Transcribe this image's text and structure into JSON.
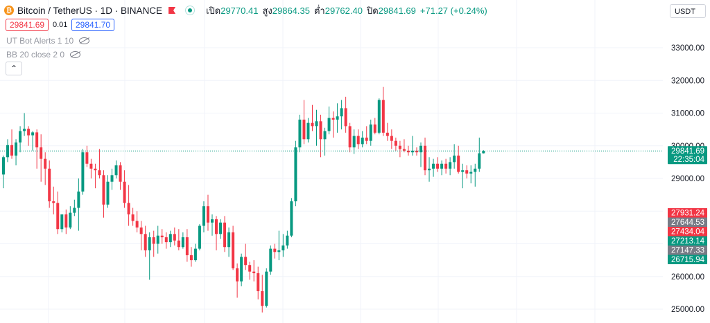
{
  "symbol": {
    "icon": "bitcoin-icon",
    "title": "Bitcoin / TetherUS · 1D · BINANCE",
    "flag_icon": "flag-icon",
    "status_icon": "market-status-dot"
  },
  "ohlc": {
    "open_label": "เปิด",
    "open": "29770.41",
    "high_label": "สูง",
    "high": "29864.35",
    "low_label": "ต่ำ",
    "low": "29762.40",
    "close_label": "ปิด",
    "close": "29841.69",
    "change": "+71.27 (+0.24%)"
  },
  "trade": {
    "sell": "29841.69",
    "spread": "0.01",
    "buy": "29841.70"
  },
  "indicators": [
    {
      "label": "UT Bot Alerts 1 10",
      "icon": "eye-hidden-icon"
    },
    {
      "label": "BB 20 close 2 0",
      "icon": "eye-hidden-icon"
    }
  ],
  "collapse_icon": "chevron-up-icon",
  "currency_selector": "USDT",
  "colors": {
    "up": "#089981",
    "down": "#f23645",
    "grey": "#787b86",
    "accent": "#2962ff"
  },
  "chart_data": {
    "type": "candlestick",
    "y_ticks": [
      "33000.00",
      "32000.00",
      "31000.00",
      "30000.00",
      "29000.00",
      "28000.00",
      "27000.00",
      "26000.00",
      "25000.00"
    ],
    "ylim": [
      24800,
      33700
    ],
    "grid": true,
    "last_price": {
      "value": "29841.69",
      "countdown": "22:35:04"
    },
    "axis_labels": [
      {
        "text": "27931.24",
        "color": "#f23645"
      },
      {
        "text": "27644.53",
        "color": "#787b86"
      },
      {
        "text": "27434.04",
        "color": "#f23645"
      },
      {
        "text": "27213.14",
        "color": "#089981"
      },
      {
        "text": "27147.33",
        "color": "#787b86"
      },
      {
        "text": "26715.94",
        "color": "#089981"
      }
    ],
    "candles": [
      [
        29120,
        29700,
        28700,
        29650
      ],
      [
        29650,
        30200,
        29500,
        30020
      ],
      [
        30020,
        30500,
        29600,
        29700
      ],
      [
        29700,
        30200,
        29400,
        30100
      ],
      [
        30100,
        30600,
        29800,
        30450
      ],
      [
        30450,
        31000,
        30300,
        30520
      ],
      [
        30520,
        30600,
        30000,
        30320
      ],
      [
        30320,
        30450,
        29850,
        30410
      ],
      [
        30410,
        30500,
        29300,
        29950
      ],
      [
        29950,
        30350,
        28900,
        29600
      ],
      [
        29600,
        29800,
        28800,
        29300
      ],
      [
        29300,
        29550,
        28100,
        28300
      ],
      [
        28300,
        28750,
        27900,
        28250
      ],
      [
        28250,
        28600,
        27300,
        27450
      ],
      [
        27450,
        27850,
        27350,
        27900
      ],
      [
        27900,
        28050,
        27300,
        27500
      ],
      [
        27500,
        28150,
        27450,
        27950
      ],
      [
        27950,
        28350,
        27850,
        28100
      ],
      [
        28100,
        29000,
        27400,
        28600
      ],
      [
        28600,
        29900,
        28500,
        29800
      ],
      [
        29800,
        30000,
        29350,
        29450
      ],
      [
        29450,
        29600,
        29000,
        29300
      ],
      [
        29300,
        29450,
        28700,
        29250
      ],
      [
        29250,
        29900,
        29000,
        29100
      ],
      [
        29100,
        29250,
        27800,
        28200
      ],
      [
        28200,
        29100,
        28100,
        28900
      ],
      [
        28900,
        29300,
        28650,
        29100
      ],
      [
        29100,
        29550,
        29000,
        29400
      ],
      [
        29400,
        29500,
        28650,
        28900
      ],
      [
        28900,
        29250,
        28100,
        28250
      ],
      [
        28250,
        28800,
        27550,
        27900
      ],
      [
        27900,
        28100,
        27550,
        27700
      ],
      [
        27700,
        28000,
        27350,
        27500
      ],
      [
        27500,
        27700,
        26800,
        27300
      ],
      [
        27300,
        27550,
        26600,
        26800
      ],
      [
        26800,
        27350,
        25900,
        27200
      ],
      [
        27200,
        27400,
        26600,
        27000
      ],
      [
        27000,
        27550,
        26700,
        27250
      ],
      [
        27250,
        27450,
        27000,
        27200
      ],
      [
        27200,
        27350,
        26850,
        27050
      ],
      [
        27050,
        27400,
        26900,
        27300
      ],
      [
        27300,
        27500,
        26950,
        27100
      ],
      [
        27100,
        27450,
        26800,
        26900
      ],
      [
        26900,
        27350,
        26850,
        27200
      ],
      [
        27200,
        27450,
        26450,
        26650
      ],
      [
        26650,
        26900,
        26300,
        26500
      ],
      [
        26500,
        27000,
        26450,
        26850
      ],
      [
        26850,
        27600,
        26800,
        27550
      ],
      [
        27550,
        28300,
        27350,
        28150
      ],
      [
        28150,
        28500,
        27400,
        27650
      ],
      [
        27650,
        27900,
        27250,
        27750
      ],
      [
        27750,
        27850,
        26800,
        27300
      ],
      [
        27300,
        27750,
        27150,
        27650
      ],
      [
        27650,
        27850,
        26750,
        26900
      ],
      [
        26900,
        27500,
        26600,
        27350
      ],
      [
        27350,
        27550,
        26200,
        26250
      ],
      [
        26250,
        26400,
        25350,
        25850
      ],
      [
        25850,
        26700,
        25700,
        26600
      ],
      [
        26600,
        27000,
        26200,
        26350
      ],
      [
        26350,
        26450,
        25900,
        26150
      ],
      [
        26150,
        26500,
        25850,
        26100
      ],
      [
        26100,
        26300,
        25300,
        25550
      ],
      [
        25550,
        26050,
        24900,
        25100
      ],
      [
        25100,
        26250,
        25050,
        26150
      ],
      [
        26150,
        26950,
        26050,
        26850
      ],
      [
        26850,
        27000,
        26550,
        26750
      ],
      [
        26750,
        27400,
        26500,
        26800
      ],
      [
        26800,
        27300,
        26600,
        26950
      ],
      [
        26950,
        27400,
        26850,
        27250
      ],
      [
        27250,
        28400,
        27200,
        28300
      ],
      [
        28300,
        30150,
        28150,
        29950
      ],
      [
        29950,
        30950,
        29800,
        30800
      ],
      [
        30800,
        31400,
        30050,
        30200
      ],
      [
        30200,
        30850,
        30100,
        30700
      ],
      [
        30700,
        31250,
        30450,
        30600
      ],
      [
        30600,
        31100,
        30000,
        30750
      ],
      [
        30750,
        30950,
        29650,
        30200
      ],
      [
        30200,
        30550,
        29700,
        30450
      ],
      [
        30450,
        31200,
        30350,
        30850
      ],
      [
        30850,
        31050,
        30250,
        30800
      ],
      [
        30800,
        31300,
        30400,
        30900
      ],
      [
        30900,
        31400,
        30500,
        31150
      ],
      [
        31150,
        31500,
        30400,
        30600
      ],
      [
        30600,
        30700,
        29800,
        29950
      ],
      [
        29950,
        30500,
        29750,
        30300
      ],
      [
        30300,
        30500,
        29900,
        30050
      ],
      [
        30050,
        30450,
        29950,
        30250
      ],
      [
        30250,
        30600,
        30050,
        30150
      ],
      [
        30150,
        30800,
        30000,
        30650
      ],
      [
        30650,
        30850,
        30350,
        30400
      ],
      [
        30400,
        31450,
        30350,
        31400
      ],
      [
        31400,
        31800,
        30300,
        30400
      ],
      [
        30400,
        30700,
        30150,
        30300
      ],
      [
        30300,
        30500,
        29900,
        30150
      ],
      [
        30150,
        30250,
        29850,
        30000
      ],
      [
        30000,
        30150,
        29650,
        29900
      ],
      [
        29900,
        30200,
        29800,
        29850
      ],
      [
        29850,
        30000,
        29700,
        29800
      ],
      [
        29800,
        30300,
        29700,
        29850
      ],
      [
        29850,
        29950,
        29700,
        29800
      ],
      [
        29800,
        30100,
        29350,
        30000
      ],
      [
        30000,
        30250,
        29100,
        29250
      ],
      [
        29250,
        29650,
        28900,
        29300
      ],
      [
        29300,
        29600,
        29050,
        29450
      ],
      [
        29450,
        29650,
        29200,
        29300
      ],
      [
        29300,
        29550,
        29100,
        29450
      ],
      [
        29450,
        29600,
        29150,
        29300
      ],
      [
        29300,
        29650,
        29100,
        29500
      ],
      [
        29500,
        30050,
        29300,
        29700
      ],
      [
        29700,
        30000,
        29150,
        29200
      ],
      [
        29200,
        29450,
        28700,
        29250
      ],
      [
        29250,
        29400,
        29000,
        29150
      ],
      [
        29150,
        29400,
        28850,
        29200
      ],
      [
        29200,
        29450,
        28750,
        29300
      ],
      [
        29300,
        30250,
        29200,
        29770
      ],
      [
        29770.41,
        29864.35,
        29762.4,
        29841.69
      ]
    ]
  }
}
